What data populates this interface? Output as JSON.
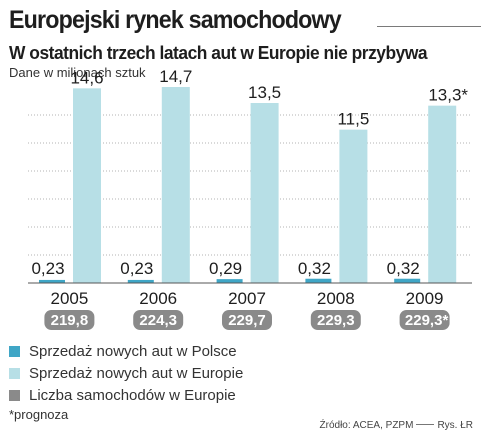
{
  "header": {
    "title": "Europejski rynek samochodowy",
    "subtitle": "W ostatnich trzech latach aut w Europie nie przybywa",
    "units": "Dane w milionach sztuk"
  },
  "chart_data": {
    "type": "bar",
    "categories": [
      "2005",
      "2006",
      "2007",
      "2008",
      "2009"
    ],
    "series": [
      {
        "name": "Sprzedaż nowych aut w Polsce",
        "values": [
          0.23,
          0.23,
          0.29,
          0.32,
          0.32
        ],
        "labels": [
          "0,23",
          "0,23",
          "0,29",
          "0,32",
          "0,32"
        ],
        "color": "#3fa6c6"
      },
      {
        "name": "Sprzedaż nowych aut w Europie",
        "values": [
          14.6,
          14.7,
          13.5,
          11.5,
          13.3
        ],
        "labels": [
          "14,6",
          "14,7",
          "13,5",
          "11,5",
          "13,3*"
        ],
        "color": "#b7dfe6"
      },
      {
        "name": "Liczba samochodów w Europie",
        "values": [
          219.8,
          224.3,
          229.7,
          229.3,
          229.3
        ],
        "labels": [
          "219,8",
          "224,3",
          "229,7",
          "229,3",
          "229,3*"
        ],
        "color": "#8a8a8a"
      }
    ],
    "ylim": [
      0,
      15
    ],
    "grid": true,
    "legend": "bottom"
  },
  "footnote": "*prognoza",
  "source": {
    "text": "Źródło: ACEA, PZPM",
    "credit": "Rys. ŁR"
  }
}
